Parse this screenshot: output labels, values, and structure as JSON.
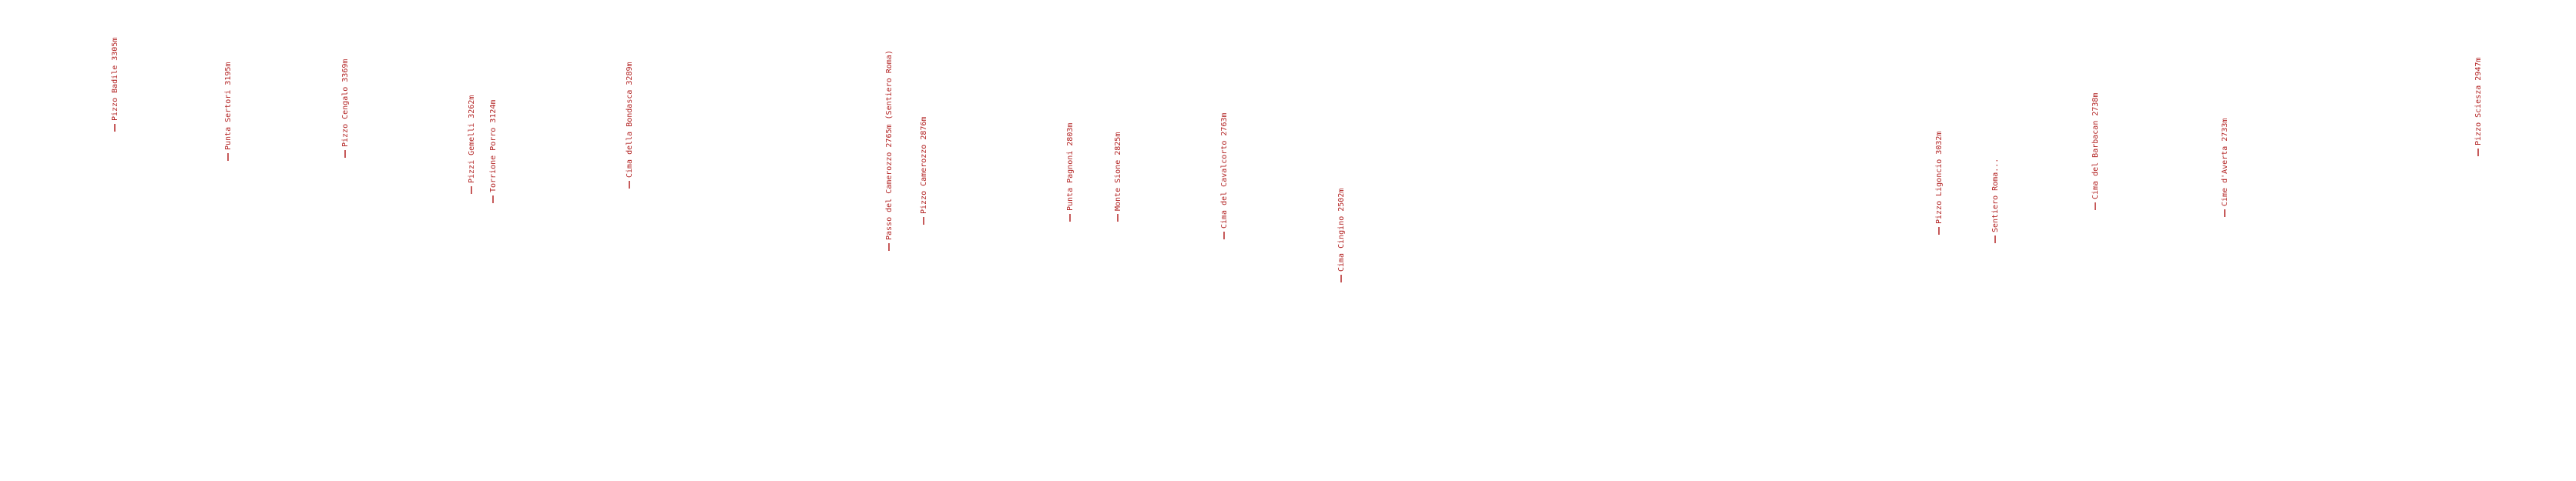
{
  "labels": [
    "Pizzo Badile 3305m",
    "Punta Sertori 3195m",
    "Pizzo Cengalo 3369m",
    "Pizzi Gemelli 3262m",
    "Torrione Porro 3124m",
    "Cima della Bondasca 3289m",
    "Passo del Camerozzo 2765m (Sentiero Roma)",
    "Pizzo Camerozzo 2876m",
    "Punta Pagnoni 2803m",
    "Monte Sione 2825m",
    "Cima del Cavalcorto 2763m",
    "Cima Cingino 2502m",
    "Pizzo Ligoncio 3032m",
    "Sentiero Roma...",
    "Cima del Barbacan 2738m",
    "Cime d'Averta 2733m",
    "Pizzo Sciesza 2947m"
  ]
}
